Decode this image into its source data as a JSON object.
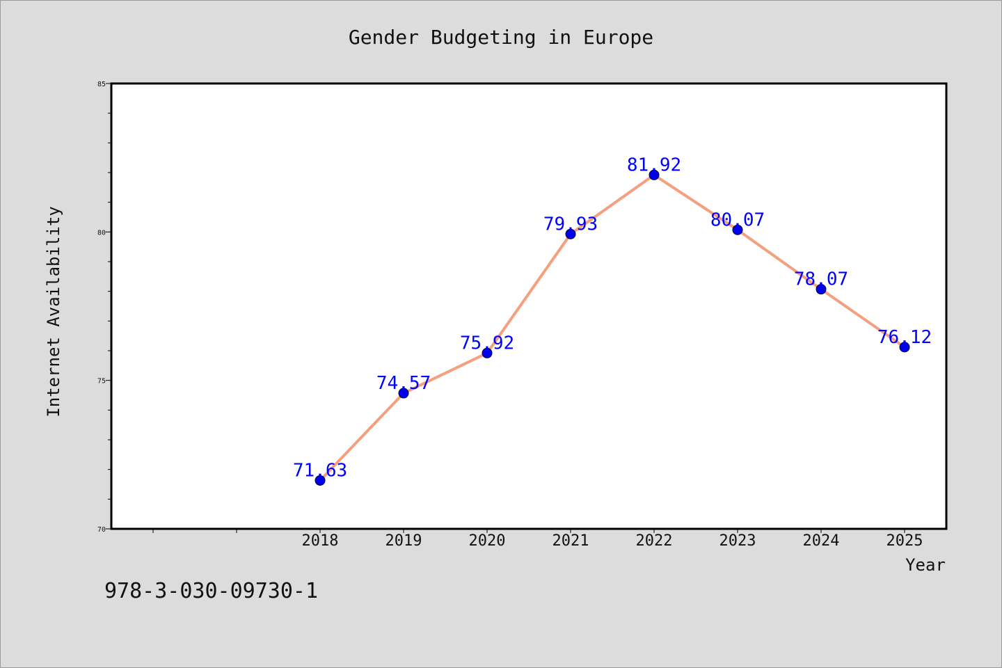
{
  "chart_data": {
    "type": "line",
    "title": "Gender Budgeting in Europe",
    "xlabel": "Year",
    "ylabel": "Internet Availability",
    "x": [
      "2018",
      "2019",
      "2020",
      "2021",
      "2022",
      "2023",
      "2024",
      "2025"
    ],
    "series": [
      {
        "values": [
          71.63,
          74.57,
          75.92,
          79.93,
          81.92,
          80.07,
          78.07,
          76.12
        ],
        "data_labels": [
          "71.63",
          "74.57",
          "75.92",
          "79.93",
          "81.92",
          "80.07",
          "78.07",
          "76.12"
        ]
      }
    ],
    "ylim": [
      70,
      85
    ],
    "y_ticks": [
      "70",
      "75",
      "80",
      "85"
    ],
    "grid": false,
    "legend": "none",
    "colors": {
      "line": "#f4a07e",
      "marker": "#0000ee",
      "data_label": "#0000ff",
      "background": "#dcdcdc",
      "plot_area": "#ffffff"
    }
  },
  "footer": {
    "code": "978-3-030-09730-1"
  }
}
